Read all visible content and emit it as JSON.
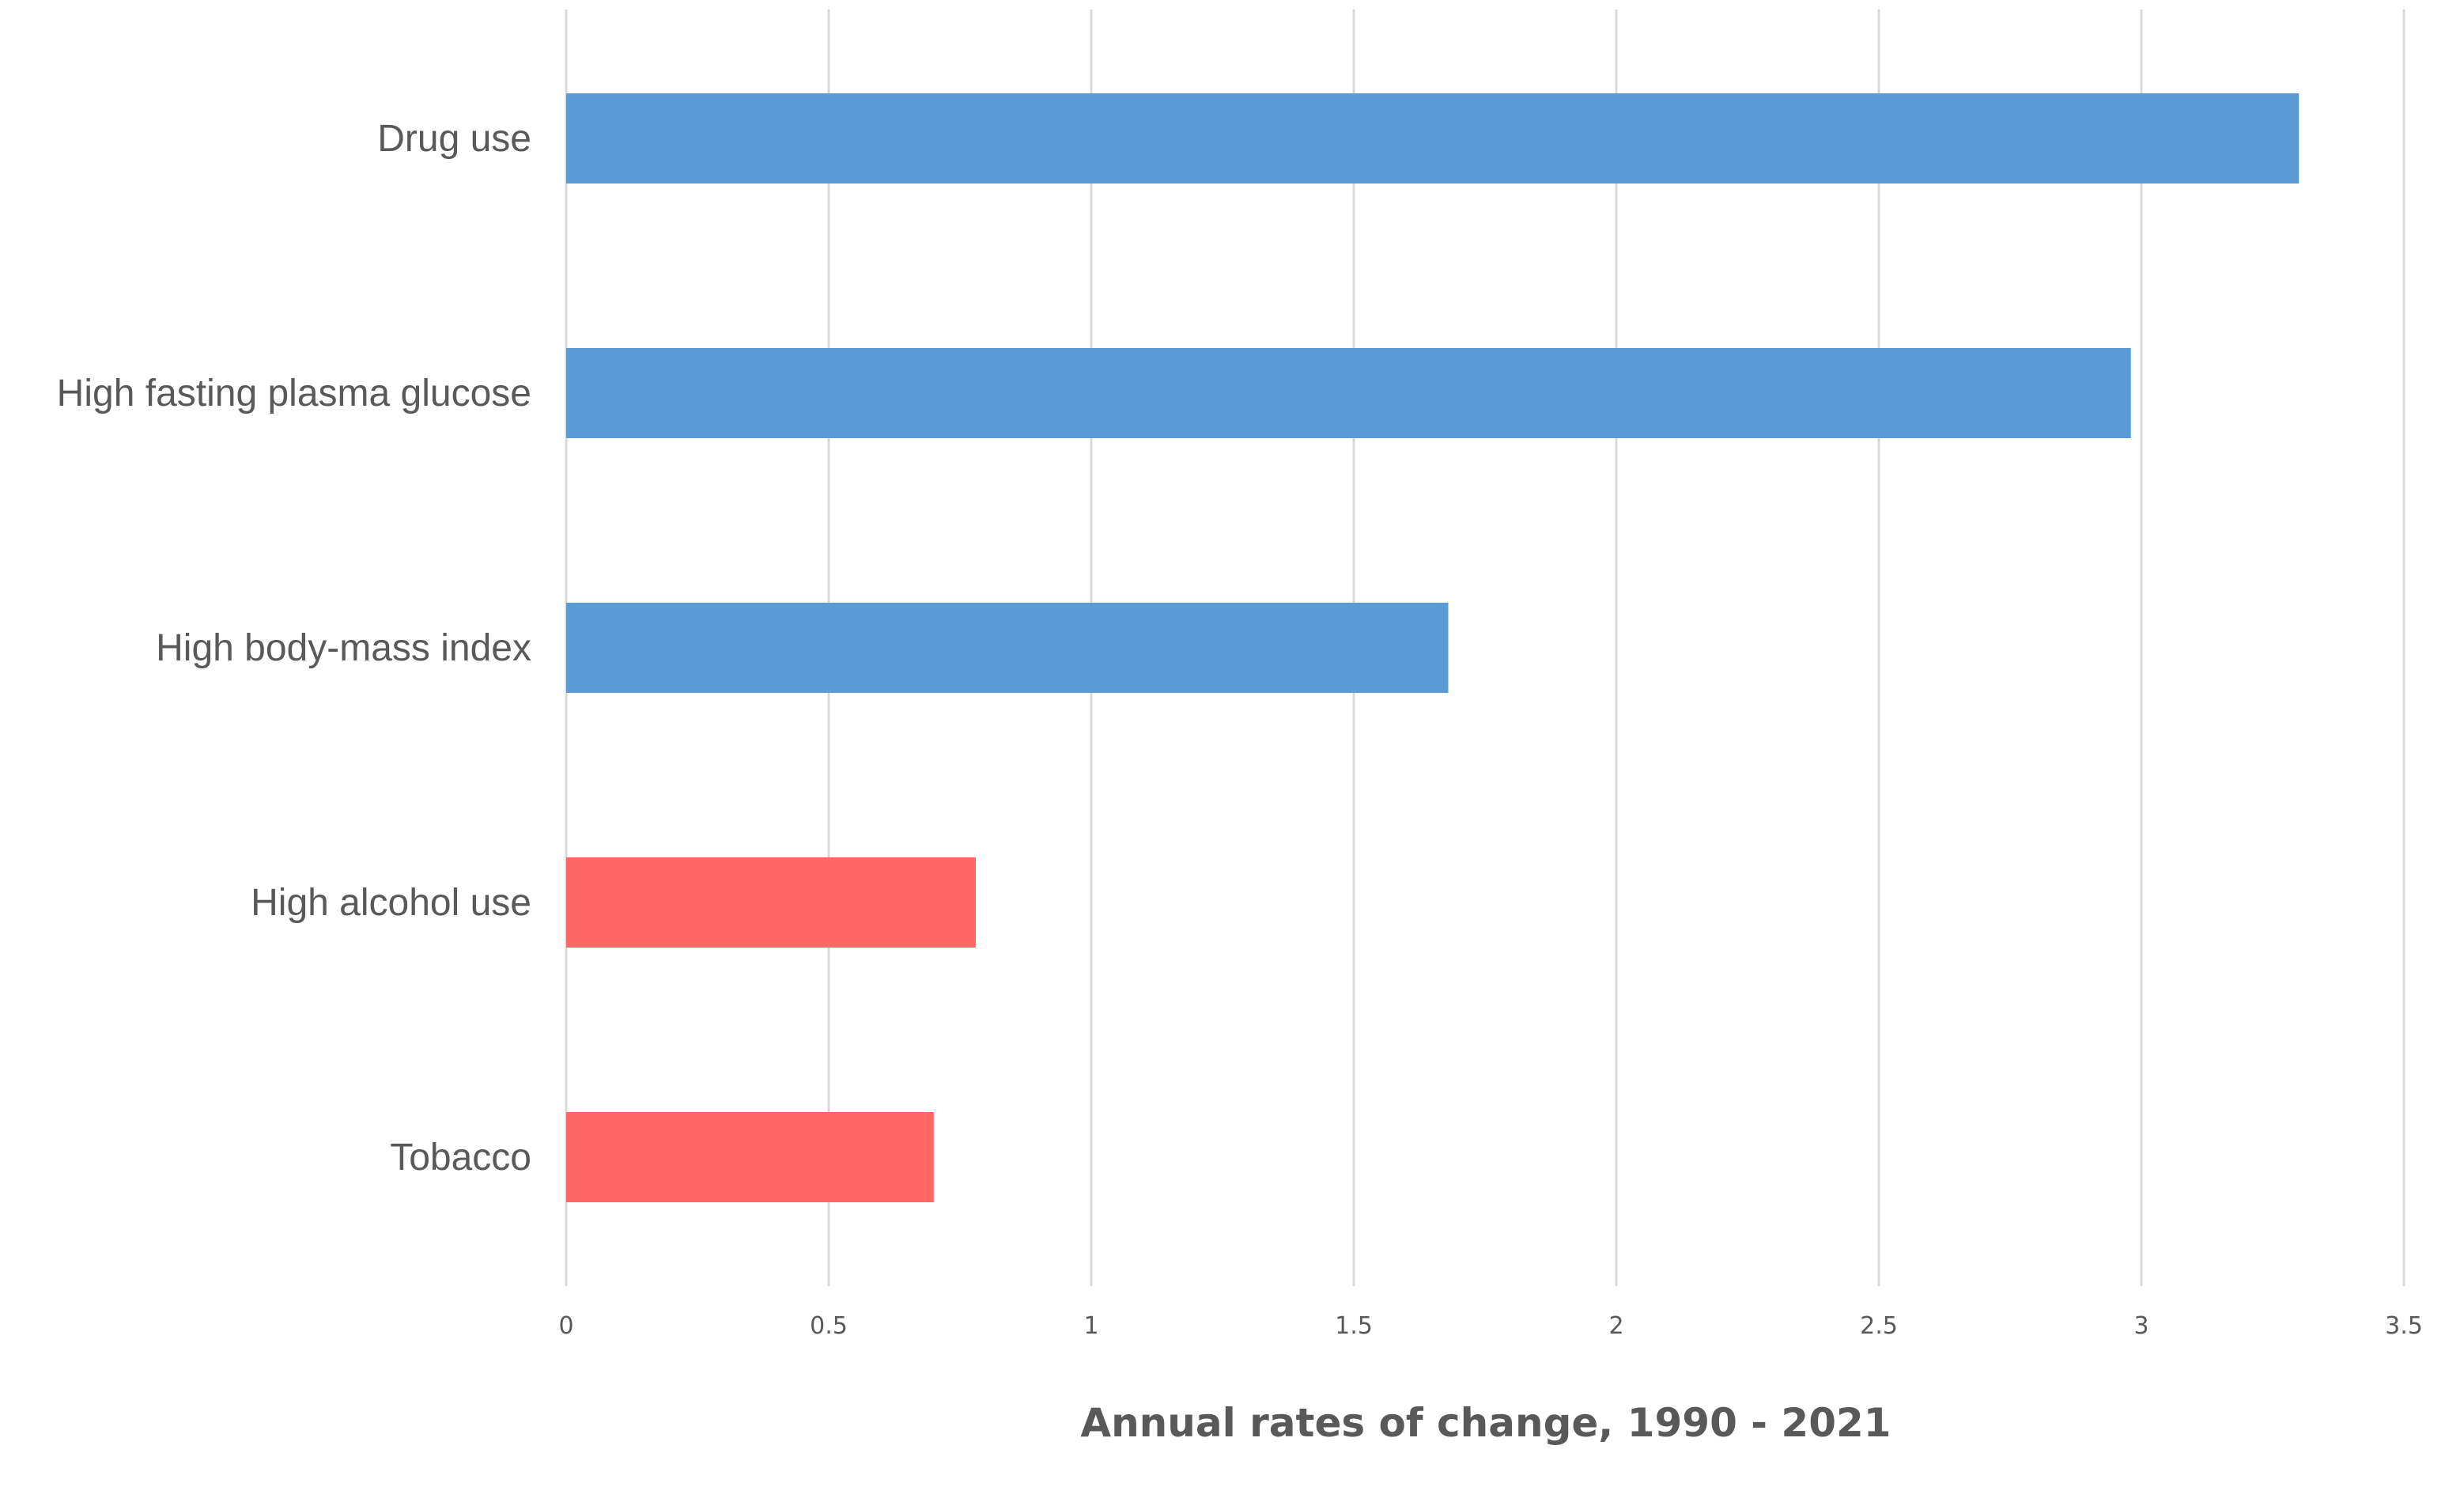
{
  "chart_data": {
    "type": "bar",
    "orientation": "horizontal",
    "title": "",
    "xlabel": "Annual rates of change, 1990 - 2021",
    "ylabel": "",
    "xlim": [
      0,
      3.5
    ],
    "x_ticks": [
      "0",
      "0.5",
      "1",
      "1.5",
      "2",
      "2.5",
      "3",
      "3.5"
    ],
    "grid": "vertical",
    "legend": "none",
    "categories": [
      "Drug use",
      "High fasting plasma glucose",
      "High body-mass index",
      "High alcohol use",
      "Tobacco"
    ],
    "values": [
      3.3,
      2.98,
      1.68,
      0.78,
      0.7
    ],
    "bar_colors": [
      "#5b9bd5",
      "#5b9bd5",
      "#5b9bd5",
      "#ff6666",
      "#ff6666"
    ]
  }
}
